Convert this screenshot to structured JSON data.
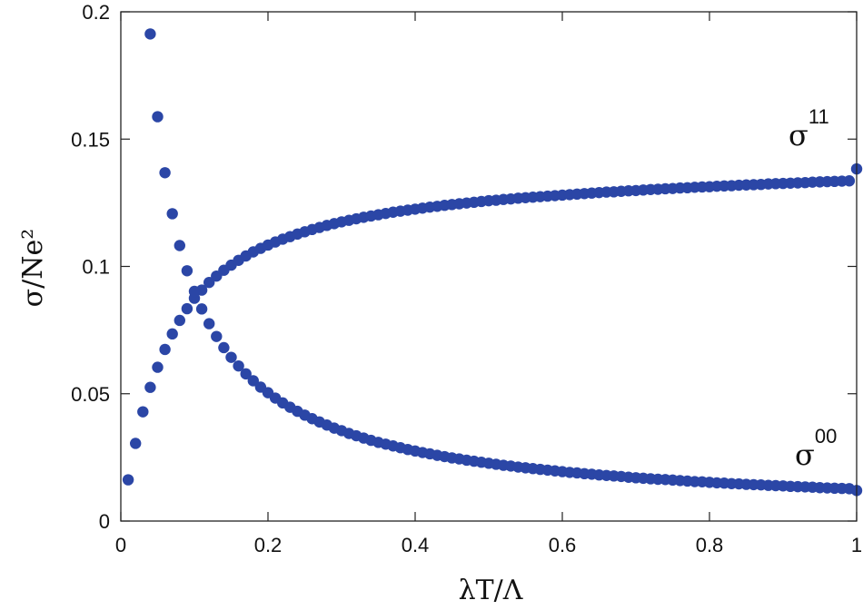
{
  "chart_data": {
    "type": "scatter",
    "xlabel": "λT/Λ",
    "ylabel": "σ/Ne²",
    "xlim": [
      0,
      1
    ],
    "ylim": [
      0,
      0.2
    ],
    "x_ticks": [
      0,
      0.2,
      0.4,
      0.6,
      0.8,
      1
    ],
    "x_tick_labels": [
      "0",
      "0.2",
      "0.4",
      "0.6",
      "0.8",
      "1"
    ],
    "y_ticks": [
      0,
      0.05,
      0.1,
      0.15,
      0.2
    ],
    "y_tick_labels": [
      "0",
      "0.05",
      "0.1",
      "0.15",
      "0.2"
    ],
    "grid": false,
    "marker_color": "#2b46a6",
    "series": [
      {
        "label_base": "σ",
        "label_sup": "11",
        "x": [
          0.01,
          0.02,
          0.03,
          0.04,
          0.05,
          0.06,
          0.07,
          0.08,
          0.09,
          0.1,
          0.11,
          0.12,
          0.13,
          0.14,
          0.15,
          0.16,
          0.17,
          0.18,
          0.19,
          0.2,
          0.21,
          0.22,
          0.23,
          0.24,
          0.25,
          0.26,
          0.27,
          0.28,
          0.29,
          0.3,
          0.31,
          0.32,
          0.33,
          0.34,
          0.35,
          0.36,
          0.37,
          0.38,
          0.39,
          0.4,
          0.41,
          0.42,
          0.43,
          0.44,
          0.45,
          0.46,
          0.47,
          0.48,
          0.49,
          0.5,
          0.51,
          0.52,
          0.53,
          0.54,
          0.55,
          0.56,
          0.57,
          0.58,
          0.59,
          0.6,
          0.61,
          0.62,
          0.63,
          0.64,
          0.65,
          0.66,
          0.67,
          0.68,
          0.69,
          0.7,
          0.71,
          0.72,
          0.73,
          0.74,
          0.75,
          0.76,
          0.77,
          0.78,
          0.79,
          0.8,
          0.81,
          0.82,
          0.83,
          0.84,
          0.85,
          0.86,
          0.87,
          0.88,
          0.89,
          0.9,
          0.91,
          0.92,
          0.93,
          0.94,
          0.95,
          0.96,
          0.97,
          0.98,
          0.99,
          1.0
        ],
        "y": [
          0.0162,
          0.0305,
          0.0429,
          0.0525,
          0.0604,
          0.0674,
          0.0735,
          0.0788,
          0.0834,
          0.0875,
          0.0907,
          0.0937,
          0.0962,
          0.0985,
          0.1005,
          0.1024,
          0.1041,
          0.1057,
          0.1071,
          0.1084,
          0.1096,
          0.1107,
          0.1117,
          0.1127,
          0.1136,
          0.1145,
          0.1153,
          0.1161,
          0.1168,
          0.1175,
          0.1181,
          0.1187,
          0.1193,
          0.1198,
          0.1203,
          0.1208,
          0.1213,
          0.1217,
          0.1221,
          0.1225,
          0.1229,
          0.1233,
          0.1236,
          0.124,
          0.1243,
          0.1246,
          0.1249,
          0.1252,
          0.1255,
          0.1258,
          0.126,
          0.1263,
          0.1265,
          0.1268,
          0.127,
          0.1272,
          0.1274,
          0.1276,
          0.1278,
          0.128,
          0.1282,
          0.1284,
          0.1286,
          0.1288,
          0.129,
          0.1292,
          0.1293,
          0.1295,
          0.1297,
          0.1298,
          0.13,
          0.1302,
          0.1303,
          0.1305,
          0.1306,
          0.1308,
          0.1309,
          0.1311,
          0.1312,
          0.1313,
          0.1315,
          0.1316,
          0.1317,
          0.1319,
          0.132,
          0.1321,
          0.1322,
          0.1324,
          0.1325,
          0.1326,
          0.1327,
          0.1328,
          0.1329,
          0.1331,
          0.1332,
          0.1333,
          0.1334,
          0.1335,
          0.1336,
          0.1383
        ]
      },
      {
        "label_base": "σ",
        "label_sup": "00",
        "x": [
          0.04,
          0.05,
          0.06,
          0.07,
          0.08,
          0.09,
          0.1,
          0.11,
          0.12,
          0.13,
          0.14,
          0.15,
          0.16,
          0.17,
          0.18,
          0.19,
          0.2,
          0.21,
          0.22,
          0.23,
          0.24,
          0.25,
          0.26,
          0.27,
          0.28,
          0.29,
          0.3,
          0.31,
          0.32,
          0.33,
          0.34,
          0.35,
          0.36,
          0.37,
          0.38,
          0.39,
          0.4,
          0.41,
          0.42,
          0.43,
          0.44,
          0.45,
          0.46,
          0.47,
          0.48,
          0.49,
          0.5,
          0.51,
          0.52,
          0.53,
          0.54,
          0.55,
          0.56,
          0.57,
          0.58,
          0.59,
          0.6,
          0.61,
          0.62,
          0.63,
          0.64,
          0.65,
          0.66,
          0.67,
          0.68,
          0.69,
          0.7,
          0.71,
          0.72,
          0.73,
          0.74,
          0.75,
          0.76,
          0.77,
          0.78,
          0.79,
          0.8,
          0.81,
          0.82,
          0.83,
          0.84,
          0.85,
          0.86,
          0.87,
          0.88,
          0.89,
          0.9,
          0.91,
          0.92,
          0.93,
          0.94,
          0.95,
          0.96,
          0.97,
          0.98,
          0.99,
          1.0
        ],
        "y": [
          0.1913,
          0.1588,
          0.1368,
          0.1207,
          0.1082,
          0.0983,
          0.0902,
          0.0833,
          0.0775,
          0.0725,
          0.0681,
          0.0643,
          0.0609,
          0.0578,
          0.0551,
          0.0526,
          0.0504,
          0.0483,
          0.0464,
          0.0447,
          0.0431,
          0.0416,
          0.0402,
          0.0389,
          0.0377,
          0.0365,
          0.0355,
          0.0344,
          0.0335,
          0.0326,
          0.0317,
          0.0309,
          0.0302,
          0.0295,
          0.0288,
          0.0281,
          0.0275,
          0.0269,
          0.0264,
          0.0258,
          0.0253,
          0.0248,
          0.0244,
          0.0239,
          0.0235,
          0.0231,
          0.0227,
          0.0223,
          0.0219,
          0.0216,
          0.0212,
          0.0209,
          0.0206,
          0.0203,
          0.02,
          0.0197,
          0.0194,
          0.0191,
          0.0189,
          0.0186,
          0.0184,
          0.0181,
          0.0179,
          0.0177,
          0.0175,
          0.0172,
          0.017,
          0.0168,
          0.0166,
          0.0164,
          0.0163,
          0.0161,
          0.0159,
          0.0157,
          0.0155,
          0.0154,
          0.0152,
          0.015,
          0.0149,
          0.0147,
          0.0146,
          0.0144,
          0.0143,
          0.0142,
          0.014,
          0.0139,
          0.0138,
          0.0136,
          0.0135,
          0.0134,
          0.0133,
          0.0131,
          0.013,
          0.0129,
          0.0128,
          0.0127,
          0.012
        ]
      }
    ]
  }
}
